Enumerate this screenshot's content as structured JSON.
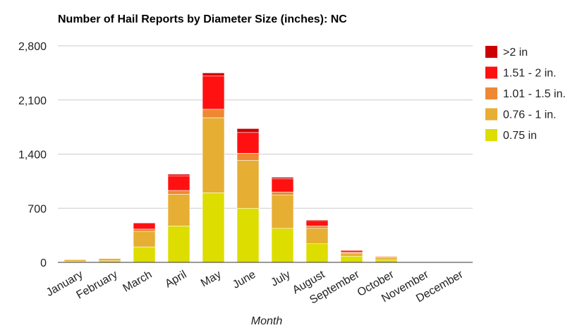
{
  "chart_data": {
    "type": "bar",
    "stacked": true,
    "title": "Number of Hail Reports by Diameter Size (inches): NC",
    "xlabel": "Month",
    "ylabel": "",
    "ylim": [
      0,
      2800
    ],
    "yticks": [
      "0",
      "700",
      "1,400",
      "2,100",
      "2,800"
    ],
    "ytick_values": [
      0,
      700,
      1400,
      2100,
      2800
    ],
    "grid": true,
    "legend_position": "right",
    "categories": [
      "January",
      "February",
      "March",
      "April",
      "May",
      "June",
      "July",
      "August",
      "September",
      "October",
      "November",
      "December"
    ],
    "series": [
      {
        "name": "0.75 in",
        "color": "#dddd00",
        "values": [
          10,
          20,
          200,
          470,
          900,
          700,
          440,
          240,
          80,
          30,
          5,
          0
        ]
      },
      {
        "name": "0.76 - 1 in.",
        "color": "#e6ae33",
        "values": [
          25,
          30,
          200,
          410,
          970,
          620,
          430,
          200,
          40,
          30,
          4,
          0
        ]
      },
      {
        "name": "1.01 - 1.5 in.",
        "color": "#ee8833",
        "values": [
          0,
          5,
          30,
          50,
          110,
          90,
          40,
          30,
          10,
          15,
          0,
          0
        ]
      },
      {
        "name": "1.51 - 2 in.",
        "color": "#ff1111",
        "values": [
          0,
          0,
          80,
          190,
          430,
          270,
          170,
          70,
          25,
          0,
          0,
          0
        ]
      },
      {
        "name": ">2 in",
        "color": "#cc0000",
        "values": [
          0,
          0,
          5,
          20,
          40,
          50,
          20,
          10,
          5,
          0,
          0,
          0
        ]
      }
    ],
    "legend_order": [
      ">2 in",
      "1.51 - 2 in.",
      "1.01 - 1.5 in.",
      "0.76 - 1 in.",
      "0.75 in"
    ]
  }
}
